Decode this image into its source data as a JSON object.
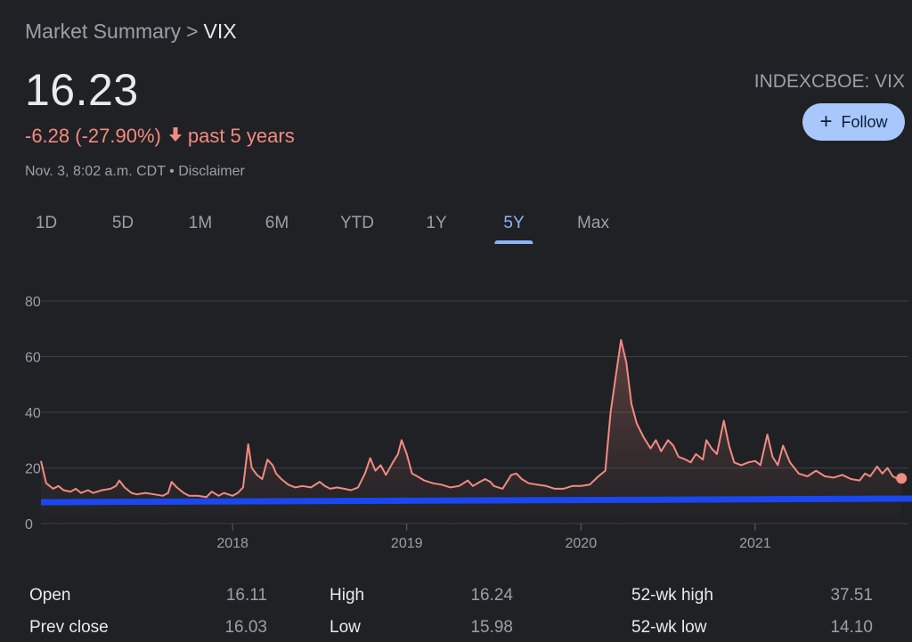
{
  "breadcrumb": {
    "parent": "Market Summary",
    "separator": ">",
    "current": "VIX"
  },
  "quote": {
    "price": "16.23",
    "change": "-6.28 (-27.90%)",
    "period": "past 5 years",
    "timestamp": "Nov. 3, 8:02 a.m. CDT",
    "disclaimer": "Disclaimer",
    "ticker": "INDEXCBOE: VIX",
    "follow_label": "Follow"
  },
  "tabs": [
    {
      "label": "1D",
      "active": false
    },
    {
      "label": "5D",
      "active": false
    },
    {
      "label": "1M",
      "active": false
    },
    {
      "label": "6M",
      "active": false
    },
    {
      "label": "YTD",
      "active": false
    },
    {
      "label": "1Y",
      "active": false
    },
    {
      "label": "5Y",
      "active": true
    },
    {
      "label": "Max",
      "active": false
    }
  ],
  "colors": {
    "line": "#f28b82",
    "baseline": "#1a47f0",
    "accent": "#8ab4f8"
  },
  "stats": {
    "open_label": "Open",
    "open": "16.11",
    "high_label": "High",
    "high": "16.24",
    "wk52_high_label": "52-wk high",
    "wk52_high": "37.51",
    "prev_close_label": "Prev close",
    "prev_close": "16.03",
    "low_label": "Low",
    "low": "15.98",
    "wk52_low_label": "52-wk low",
    "wk52_low": "14.10"
  },
  "chart_data": {
    "type": "line",
    "title": "",
    "xlabel": "",
    "ylabel": "",
    "ylim": [
      0,
      80
    ],
    "xlim": [
      2016.9,
      2021.88
    ],
    "y_ticks": [
      0,
      20,
      40,
      60,
      80
    ],
    "x_ticks": [
      2018,
      2019,
      2020,
      2021
    ],
    "grid": true,
    "baseline_value": 8,
    "series": [
      {
        "points": [
          [
            2016.9,
            22.5
          ],
          [
            2016.93,
            14.5
          ],
          [
            2016.97,
            12.5
          ],
          [
            2017.0,
            13.5
          ],
          [
            2017.03,
            12.0
          ],
          [
            2017.07,
            11.5
          ],
          [
            2017.1,
            12.5
          ],
          [
            2017.13,
            11.0
          ],
          [
            2017.17,
            12.0
          ],
          [
            2017.2,
            11.0
          ],
          [
            2017.25,
            12.0
          ],
          [
            2017.3,
            12.5
          ],
          [
            2017.33,
            13.5
          ],
          [
            2017.35,
            15.5
          ],
          [
            2017.38,
            13.0
          ],
          [
            2017.42,
            11.0
          ],
          [
            2017.45,
            10.5
          ],
          [
            2017.5,
            11.0
          ],
          [
            2017.55,
            10.5
          ],
          [
            2017.6,
            10.0
          ],
          [
            2017.63,
            11.0
          ],
          [
            2017.65,
            15.0
          ],
          [
            2017.68,
            13.0
          ],
          [
            2017.72,
            11.0
          ],
          [
            2017.75,
            10.0
          ],
          [
            2017.8,
            10.0
          ],
          [
            2017.85,
            9.5
          ],
          [
            2017.88,
            11.5
          ],
          [
            2017.92,
            10.0
          ],
          [
            2017.95,
            11.0
          ],
          [
            2018.0,
            10.0
          ],
          [
            2018.03,
            11.0
          ],
          [
            2018.06,
            13.0
          ],
          [
            2018.09,
            28.5
          ],
          [
            2018.11,
            20.0
          ],
          [
            2018.14,
            17.5
          ],
          [
            2018.17,
            16.0
          ],
          [
            2018.2,
            23.0
          ],
          [
            2018.23,
            21.0
          ],
          [
            2018.25,
            18.0
          ],
          [
            2018.28,
            16.0
          ],
          [
            2018.32,
            14.0
          ],
          [
            2018.36,
            13.0
          ],
          [
            2018.4,
            13.5
          ],
          [
            2018.45,
            13.0
          ],
          [
            2018.5,
            15.0
          ],
          [
            2018.53,
            13.5
          ],
          [
            2018.56,
            12.5
          ],
          [
            2018.6,
            13.0
          ],
          [
            2018.64,
            12.5
          ],
          [
            2018.68,
            12.0
          ],
          [
            2018.72,
            13.0
          ],
          [
            2018.76,
            18.0
          ],
          [
            2018.79,
            23.5
          ],
          [
            2018.82,
            19.0
          ],
          [
            2018.85,
            21.0
          ],
          [
            2018.88,
            17.5
          ],
          [
            2018.92,
            22.0
          ],
          [
            2018.95,
            25.0
          ],
          [
            2018.97,
            30.0
          ],
          [
            2019.0,
            25.0
          ],
          [
            2019.03,
            18.0
          ],
          [
            2019.06,
            17.0
          ],
          [
            2019.1,
            15.5
          ],
          [
            2019.15,
            14.5
          ],
          [
            2019.2,
            14.0
          ],
          [
            2019.25,
            13.0
          ],
          [
            2019.3,
            13.5
          ],
          [
            2019.35,
            15.5
          ],
          [
            2019.38,
            13.5
          ],
          [
            2019.42,
            15.0
          ],
          [
            2019.45,
            16.0
          ],
          [
            2019.48,
            15.0
          ],
          [
            2019.5,
            13.5
          ],
          [
            2019.55,
            12.5
          ],
          [
            2019.6,
            17.5
          ],
          [
            2019.63,
            18.0
          ],
          [
            2019.66,
            16.0
          ],
          [
            2019.7,
            14.5
          ],
          [
            2019.75,
            14.0
          ],
          [
            2019.8,
            13.5
          ],
          [
            2019.85,
            12.5
          ],
          [
            2019.9,
            12.5
          ],
          [
            2019.95,
            13.5
          ],
          [
            2020.0,
            13.5
          ],
          [
            2020.05,
            14.0
          ],
          [
            2020.1,
            17.0
          ],
          [
            2020.14,
            19.0
          ],
          [
            2020.17,
            40.0
          ],
          [
            2020.2,
            53.0
          ],
          [
            2020.23,
            66.0
          ],
          [
            2020.26,
            58.0
          ],
          [
            2020.29,
            43.0
          ],
          [
            2020.32,
            36.0
          ],
          [
            2020.36,
            31.0
          ],
          [
            2020.4,
            27.0
          ],
          [
            2020.43,
            30.0
          ],
          [
            2020.46,
            26.0
          ],
          [
            2020.5,
            30.0
          ],
          [
            2020.53,
            28.0
          ],
          [
            2020.56,
            24.0
          ],
          [
            2020.6,
            23.0
          ],
          [
            2020.63,
            22.0
          ],
          [
            2020.66,
            25.0
          ],
          [
            2020.7,
            23.0
          ],
          [
            2020.72,
            30.0
          ],
          [
            2020.75,
            27.0
          ],
          [
            2020.78,
            25.0
          ],
          [
            2020.82,
            37.0
          ],
          [
            2020.85,
            28.0
          ],
          [
            2020.88,
            22.0
          ],
          [
            2020.92,
            21.0
          ],
          [
            2020.96,
            22.0
          ],
          [
            2021.0,
            22.5
          ],
          [
            2021.03,
            21.0
          ],
          [
            2021.07,
            32.0
          ],
          [
            2021.1,
            24.0
          ],
          [
            2021.13,
            21.0
          ],
          [
            2021.16,
            28.0
          ],
          [
            2021.2,
            22.0
          ],
          [
            2021.25,
            18.0
          ],
          [
            2021.3,
            17.0
          ],
          [
            2021.35,
            19.0
          ],
          [
            2021.4,
            17.0
          ],
          [
            2021.45,
            16.5
          ],
          [
            2021.5,
            17.5
          ],
          [
            2021.55,
            16.0
          ],
          [
            2021.6,
            15.5
          ],
          [
            2021.63,
            18.0
          ],
          [
            2021.66,
            17.0
          ],
          [
            2021.7,
            20.5
          ],
          [
            2021.73,
            18.0
          ],
          [
            2021.76,
            20.0
          ],
          [
            2021.79,
            17.0
          ],
          [
            2021.82,
            16.0
          ],
          [
            2021.84,
            16.23
          ]
        ]
      }
    ]
  }
}
